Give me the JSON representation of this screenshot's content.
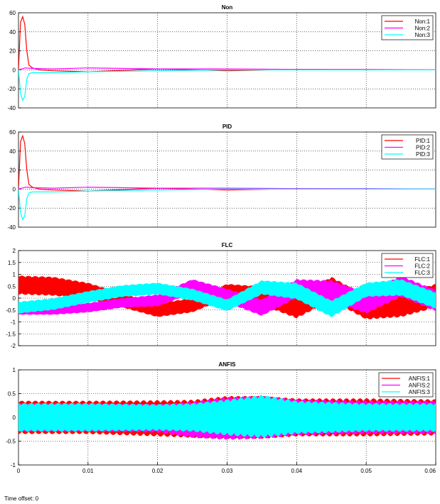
{
  "footer": {
    "time_offset": "Time offset: 0"
  },
  "colors": {
    "series1": "#ff0000",
    "series2": "#ff00ff",
    "series3": "#00ffff"
  },
  "chart_data": [
    {
      "type": "line",
      "title": "Non",
      "xlim": [
        0,
        0.06
      ],
      "ylim": [
        -40,
        60
      ],
      "yticks": [
        -40,
        -20,
        0,
        20,
        40,
        60
      ],
      "grid": true,
      "legend_position": "top-right",
      "legend": [
        "Non:1",
        "Non:2",
        "Non:3"
      ],
      "series": [
        {
          "name": "Non:1",
          "color": "#ff0000",
          "x": [
            0,
            0.0003,
            0.0006,
            0.0009,
            0.0012,
            0.0015,
            0.002,
            0.003,
            0.005,
            0.01,
            0.02,
            0.03,
            0.04,
            0.05,
            0.06
          ],
          "y": [
            0,
            50,
            56,
            48,
            20,
            5,
            2,
            0,
            -1,
            -2,
            1,
            -1,
            0.5,
            0,
            0
          ]
        },
        {
          "name": "Non:2",
          "color": "#ff00ff",
          "x": [
            0,
            0.0005,
            0.001,
            0.002,
            0.005,
            0.01,
            0.02,
            0.03,
            0.04,
            0.05,
            0.06
          ],
          "y": [
            0,
            1,
            2,
            1.5,
            1,
            2,
            1,
            1,
            0.5,
            0.5,
            0
          ]
        },
        {
          "name": "Non:3",
          "color": "#00ffff",
          "x": [
            0,
            0.0003,
            0.0006,
            0.0009,
            0.0012,
            0.0015,
            0.002,
            0.003,
            0.005,
            0.01,
            0.02,
            0.03,
            0.04,
            0.05,
            0.06
          ],
          "y": [
            0,
            -25,
            -32,
            -28,
            -10,
            -4,
            -3,
            -3,
            -3,
            -2,
            -1,
            0,
            0,
            0,
            0
          ]
        }
      ]
    },
    {
      "type": "line",
      "title": "PID",
      "xlim": [
        0,
        0.06
      ],
      "ylim": [
        -40,
        60
      ],
      "yticks": [
        -40,
        -20,
        0,
        20,
        40,
        60
      ],
      "grid": true,
      "legend_position": "top-right",
      "legend": [
        "PID:1",
        "PID:2",
        "PID:3"
      ],
      "series": [
        {
          "name": "PID:1",
          "color": "#ff0000",
          "x": [
            0,
            0.0003,
            0.0006,
            0.0009,
            0.0012,
            0.0015,
            0.002,
            0.003,
            0.005,
            0.01,
            0.02,
            0.03,
            0.04,
            0.05,
            0.06
          ],
          "y": [
            0,
            50,
            56,
            48,
            20,
            5,
            2,
            0,
            -1,
            -2,
            1,
            -1,
            0.5,
            0,
            0
          ]
        },
        {
          "name": "PID:2",
          "color": "#ff00ff",
          "x": [
            0,
            0.0005,
            0.001,
            0.002,
            0.005,
            0.01,
            0.02,
            0.03,
            0.04,
            0.05,
            0.06
          ],
          "y": [
            0,
            1,
            2,
            1.5,
            1,
            2,
            1,
            1,
            0.5,
            0.5,
            0
          ]
        },
        {
          "name": "PID:3",
          "color": "#00ffff",
          "x": [
            0,
            0.0003,
            0.0006,
            0.0009,
            0.0012,
            0.0015,
            0.002,
            0.003,
            0.005,
            0.01,
            0.02,
            0.03,
            0.04,
            0.05,
            0.06
          ],
          "y": [
            0,
            -25,
            -32,
            -28,
            -10,
            -4,
            -3,
            -3,
            -3,
            -2,
            -1,
            0,
            0,
            0,
            0
          ]
        }
      ]
    },
    {
      "type": "line",
      "title": "FLC",
      "xlim": [
        0,
        0.06
      ],
      "ylim": [
        -2,
        2
      ],
      "yticks": [
        -2,
        -1.5,
        -1,
        -0.5,
        0,
        0.5,
        1,
        1.5,
        2
      ],
      "grid": true,
      "legend_position": "top-right",
      "legend": [
        "FLC:1",
        "FLC:2",
        "FLC:3"
      ],
      "series": [
        {
          "name": "FLC:1",
          "color": "#ff0000",
          "x": [
            0,
            0.005,
            0.01,
            0.015,
            0.02,
            0.025,
            0.03,
            0.035,
            0.04,
            0.045,
            0.05,
            0.055,
            0.06
          ],
          "y_center": [
            0.55,
            0.5,
            0.3,
            -0.1,
            -0.5,
            -0.3,
            0.3,
            0.1,
            -0.4,
            0.4,
            -0.4,
            -0.3,
            0.1
          ],
          "y_band": [
            0.4,
            0.4,
            0.35,
            0.3,
            0.3,
            0.3,
            0.3,
            0.4,
            0.45,
            0.5,
            0.5,
            0.5,
            0.5
          ]
        },
        {
          "name": "FLC:2",
          "color": "#ff00ff",
          "x": [
            0,
            0.005,
            0.01,
            0.015,
            0.02,
            0.025,
            0.03,
            0.035,
            0.04,
            0.045,
            0.05,
            0.055,
            0.06
          ],
          "y_center": [
            -0.5,
            -0.5,
            -0.4,
            -0.2,
            -0.1,
            0.5,
            0.1,
            -0.4,
            0.4,
            0.3,
            -0.2,
            0.5,
            -0.1
          ],
          "y_band": [
            0.2,
            0.2,
            0.2,
            0.2,
            0.25,
            0.3,
            0.3,
            0.35,
            0.4,
            0.45,
            0.45,
            0.45,
            0.45
          ]
        },
        {
          "name": "FLC:3",
          "color": "#00ffff",
          "x": [
            0,
            0.005,
            0.01,
            0.015,
            0.02,
            0.025,
            0.03,
            0.035,
            0.04,
            0.045,
            0.05,
            0.055,
            0.06
          ],
          "y_center": [
            -0.4,
            -0.25,
            0.05,
            0.3,
            0.4,
            0.15,
            -0.3,
            0.45,
            0.3,
            -0.45,
            0.35,
            0.45,
            -0.1
          ],
          "y_band": [
            0.25,
            0.25,
            0.25,
            0.25,
            0.25,
            0.25,
            0.25,
            0.3,
            0.35,
            0.35,
            0.3,
            0.35,
            0.35
          ]
        }
      ]
    },
    {
      "type": "line",
      "title": "ANFIS",
      "xlim": [
        0,
        0.06
      ],
      "xticks": [
        0,
        0.01,
        0.02,
        0.03,
        0.04,
        0.05,
        0.06
      ],
      "xtick_labels": [
        "0",
        "0.01",
        "0.02",
        "0.03",
        "0.04",
        "0.05",
        "0.06"
      ],
      "ylim": [
        -1,
        1
      ],
      "yticks": [
        -1,
        -0.5,
        0,
        0.5,
        1
      ],
      "grid": true,
      "legend_position": "top-right",
      "legend": [
        "ANFIS:1",
        "ANFIS:2",
        "ANFIS:3"
      ],
      "series": [
        {
          "name": "ANFIS:1",
          "color": "#ff0000",
          "x": [
            0,
            0.01,
            0.02,
            0.025,
            0.03,
            0.035,
            0.04,
            0.05,
            0.06
          ],
          "y_center": [
            0,
            0,
            -0.02,
            -0.03,
            0,
            0,
            0,
            0,
            0
          ],
          "y_band": [
            0.35,
            0.35,
            0.38,
            0.4,
            0.45,
            0.45,
            0.4,
            0.4,
            0.38
          ]
        },
        {
          "name": "ANFIS:2",
          "color": "#ff00ff",
          "x": [
            0,
            0.01,
            0.02,
            0.025,
            0.03,
            0.035,
            0.04,
            0.05,
            0.06
          ],
          "y_center": [
            0,
            0,
            -0.02,
            -0.05,
            -0.02,
            0,
            0,
            0,
            0
          ],
          "y_band": [
            0.3,
            0.3,
            0.3,
            0.38,
            0.45,
            0.45,
            0.38,
            0.35,
            0.35
          ]
        },
        {
          "name": "ANFIS:3",
          "color": "#00ffff",
          "x": [
            0,
            0.01,
            0.02,
            0.025,
            0.03,
            0.035,
            0.04,
            0.05,
            0.06
          ],
          "y_center": [
            0,
            0,
            0,
            0,
            0,
            0.02,
            0,
            0,
            0
          ],
          "y_band": [
            0.3,
            0.3,
            0.28,
            0.3,
            0.38,
            0.45,
            0.35,
            0.3,
            0.3
          ]
        }
      ]
    }
  ]
}
